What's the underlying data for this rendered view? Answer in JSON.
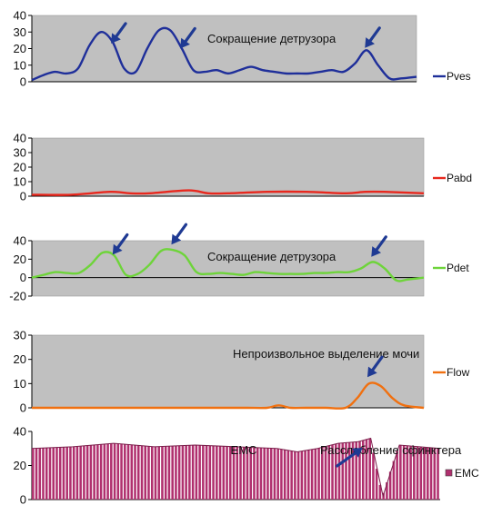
{
  "arrow_color": "#1f3a93",
  "chart_data": [
    {
      "type": "line",
      "title": "",
      "xlabel": "",
      "ylabel": "",
      "ylim": [
        0,
        40
      ],
      "yticks": [
        0,
        10,
        20,
        30,
        40
      ],
      "background": "#c0c0c0",
      "grid": false,
      "legend_position": "right",
      "annotation": "Сокращение детрузора",
      "series": [
        {
          "name": "Pves",
          "color": "#1f2f9a",
          "x": [
            0,
            3,
            6,
            9,
            12,
            15,
            18,
            21,
            24,
            27,
            30,
            33,
            36,
            39,
            42,
            45,
            48,
            51,
            54,
            57,
            60,
            63,
            66,
            69,
            72,
            75,
            78,
            81,
            84,
            87,
            90,
            93,
            96,
            100
          ],
          "values": [
            1,
            4,
            6,
            5,
            8,
            22,
            30,
            24,
            8,
            6,
            20,
            31,
            31,
            20,
            7,
            6,
            7,
            5,
            7,
            9,
            7,
            6,
            5,
            5,
            5,
            6,
            7,
            6,
            11,
            19,
            10,
            2,
            2,
            3
          ]
        }
      ],
      "arrows_at_x": [
        22,
        40,
        88
      ]
    },
    {
      "type": "line",
      "title": "",
      "xlabel": "",
      "ylabel": "",
      "ylim": [
        0,
        40
      ],
      "yticks": [
        0,
        10,
        20,
        30,
        40
      ],
      "background": "#c0c0c0",
      "grid": false,
      "legend_position": "right",
      "series": [
        {
          "name": "Pabd",
          "color": "#e8281e",
          "x": [
            0,
            10,
            20,
            25,
            30,
            40,
            45,
            50,
            60,
            70,
            80,
            85,
            90,
            100
          ],
          "values": [
            1,
            1,
            3,
            2,
            2,
            4,
            2,
            2,
            3,
            3,
            2,
            3,
            3,
            2
          ]
        }
      ]
    },
    {
      "type": "line",
      "title": "",
      "xlabel": "",
      "ylabel": "",
      "ylim": [
        -20,
        40
      ],
      "yticks": [
        -20,
        0,
        20,
        40
      ],
      "background": "#c0c0c0",
      "grid": false,
      "legend_position": "right",
      "annotation": "Сокращение детрузора",
      "series": [
        {
          "name": "Pdet",
          "color": "#6ed43a",
          "x": [
            0,
            3,
            6,
            9,
            12,
            15,
            18,
            21,
            24,
            27,
            30,
            33,
            36,
            39,
            42,
            45,
            48,
            51,
            54,
            57,
            60,
            63,
            66,
            69,
            72,
            75,
            78,
            81,
            84,
            87,
            90,
            93,
            96,
            100
          ],
          "values": [
            0,
            3,
            6,
            5,
            5,
            14,
            27,
            24,
            3,
            4,
            14,
            29,
            30,
            24,
            6,
            4,
            5,
            4,
            3,
            6,
            5,
            4,
            4,
            4,
            5,
            5,
            6,
            6,
            10,
            17,
            10,
            -3,
            -2,
            0
          ]
        }
      ],
      "arrows_at_x": [
        22,
        37,
        88
      ]
    },
    {
      "type": "line",
      "title": "",
      "xlabel": "",
      "ylabel": "",
      "ylim": [
        0,
        30
      ],
      "yticks": [
        0,
        10,
        20,
        30
      ],
      "background": "#c0c0c0",
      "grid": false,
      "legend_position": "right",
      "annotation": "Непроизвольное выделение мочи",
      "series": [
        {
          "name": "Flow",
          "color": "#f07010",
          "x": [
            0,
            10,
            20,
            30,
            40,
            50,
            55,
            60,
            63,
            66,
            70,
            75,
            80,
            83,
            86,
            89,
            92,
            95,
            100
          ],
          "values": [
            0,
            0,
            0,
            0,
            0,
            0,
            0,
            0,
            1,
            0,
            0,
            0,
            0,
            4,
            10,
            9,
            4,
            1,
            0
          ]
        }
      ],
      "arrows_at_x": [
        87
      ]
    },
    {
      "type": "bar",
      "title": "EMC",
      "xlabel": "",
      "ylabel": "",
      "ylim": [
        0,
        40
      ],
      "yticks": [
        0,
        20,
        40
      ],
      "background": "#ffffff",
      "grid": false,
      "legend_position": "right",
      "annotation": "Расслабление сфинктера",
      "series": [
        {
          "name": "EMC",
          "color": "#b0306e",
          "x": [
            0,
            10,
            20,
            30,
            40,
            50,
            60,
            65,
            70,
            75,
            80,
            83,
            86,
            90,
            95,
            100
          ],
          "values": [
            30,
            31,
            33,
            31,
            32,
            31,
            30,
            28,
            30,
            33,
            34,
            36,
            2,
            32,
            31,
            30
          ]
        }
      ],
      "arrows_at_x": [
        81
      ]
    }
  ]
}
